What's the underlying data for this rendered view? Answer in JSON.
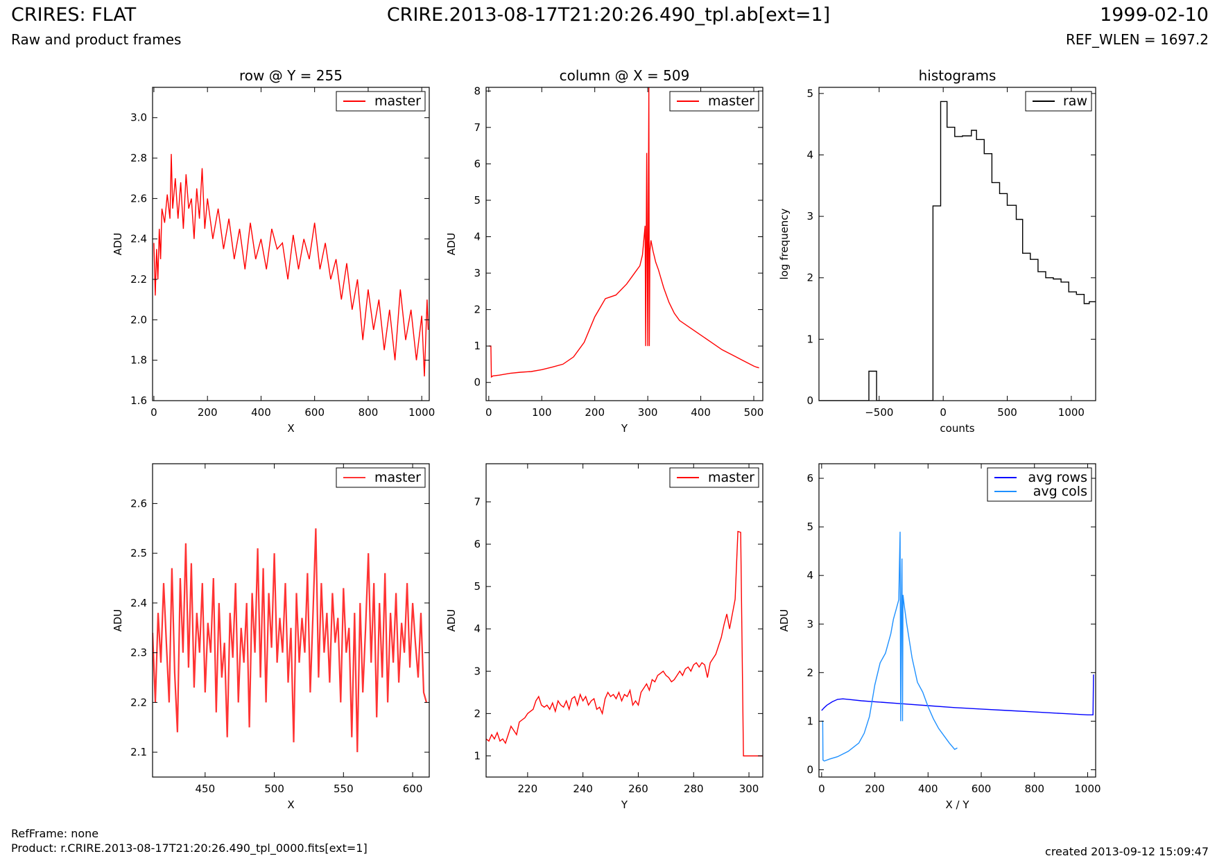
{
  "header": {
    "title_left": "CRIRES: FLAT",
    "subtitle_left": "Raw and product frames",
    "title_center": "CRIRE.2013-08-17T21:20:26.490_tpl.ab[ext=1]",
    "title_right": "1999-02-10",
    "subtitle_right": "REF_WLEN = 1697.2"
  },
  "footer": {
    "ref_frame": "RefFrame: none",
    "product": "Product: r.CRIRE.2013-08-17T21:20:26.490_tpl_0000.fits[ext=1]",
    "created": "created 2013-09-12 15:09:47"
  },
  "colors": {
    "master": "#ff0000",
    "raw": "#000000",
    "avg_rows": "#0000ff",
    "avg_cols": "#1e90ff"
  },
  "chart_data": [
    {
      "id": "row",
      "type": "line",
      "title": "row @ Y = 255",
      "xlabel": "X",
      "ylabel": "ADU",
      "xlim": [
        -5,
        1028
      ],
      "ylim": [
        1.6,
        3.15
      ],
      "xticks": [
        0,
        200,
        400,
        600,
        800,
        1000
      ],
      "yticks": [
        1.6,
        1.8,
        2.0,
        2.2,
        2.4,
        2.6,
        2.8,
        3.0
      ],
      "ytick_labels": [
        "1.6",
        "1.8",
        "2.0",
        "2.2",
        "2.4",
        "2.6",
        "2.8",
        "3.0"
      ],
      "legend": "top-right",
      "series": [
        {
          "name": "master",
          "color": "#ff0000",
          "x": [
            0,
            5,
            10,
            15,
            20,
            25,
            30,
            40,
            50,
            60,
            65,
            70,
            80,
            90,
            100,
            110,
            120,
            130,
            140,
            150,
            160,
            170,
            180,
            190,
            200,
            220,
            240,
            260,
            280,
            300,
            320,
            340,
            360,
            380,
            400,
            420,
            440,
            460,
            480,
            500,
            520,
            540,
            560,
            580,
            600,
            620,
            640,
            660,
            680,
            700,
            720,
            740,
            760,
            780,
            800,
            820,
            840,
            860,
            880,
            900,
            920,
            940,
            960,
            980,
            1000,
            1010,
            1020,
            1024
          ],
          "y": [
            2.38,
            2.12,
            2.35,
            2.2,
            2.45,
            2.3,
            2.55,
            2.48,
            2.62,
            2.5,
            2.82,
            2.55,
            2.7,
            2.5,
            2.68,
            2.45,
            2.72,
            2.55,
            2.6,
            2.4,
            2.65,
            2.5,
            2.75,
            2.45,
            2.6,
            2.4,
            2.55,
            2.35,
            2.5,
            2.3,
            2.45,
            2.25,
            2.48,
            2.3,
            2.4,
            2.25,
            2.45,
            2.35,
            2.38,
            2.2,
            2.42,
            2.25,
            2.4,
            2.3,
            2.48,
            2.25,
            2.38,
            2.2,
            2.3,
            2.1,
            2.28,
            2.05,
            2.2,
            1.9,
            2.15,
            1.95,
            2.1,
            1.85,
            2.05,
            1.8,
            2.15,
            1.9,
            2.05,
            1.8,
            2.02,
            1.72,
            2.1,
            1.95
          ]
        }
      ]
    },
    {
      "id": "column",
      "type": "line",
      "title": "column @ X = 509",
      "xlabel": "Y",
      "ylabel": "ADU",
      "xlim": [
        -5,
        517
      ],
      "ylim": [
        -0.5,
        8.1
      ],
      "xticks": [
        0,
        100,
        200,
        300,
        400,
        500
      ],
      "yticks": [
        0,
        1,
        2,
        3,
        4,
        5,
        6,
        7,
        8
      ],
      "legend": "top-right",
      "series": [
        {
          "name": "master",
          "color": "#ff0000",
          "x": [
            0,
            4,
            5,
            8,
            20,
            40,
            60,
            80,
            100,
            120,
            140,
            160,
            180,
            200,
            220,
            240,
            260,
            270,
            280,
            285,
            290,
            295,
            296,
            298,
            300,
            302,
            303,
            304,
            306,
            310,
            315,
            320,
            330,
            340,
            350,
            360,
            380,
            400,
            420,
            440,
            460,
            480,
            500,
            505,
            510
          ],
          "y": [
            1.0,
            1.0,
            0.15,
            0.18,
            0.2,
            0.25,
            0.28,
            0.3,
            0.35,
            0.42,
            0.5,
            0.7,
            1.1,
            1.8,
            2.3,
            2.4,
            2.7,
            2.9,
            3.1,
            3.2,
            3.5,
            4.3,
            1.0,
            6.3,
            1.0,
            8.1,
            1.0,
            3.6,
            3.9,
            3.6,
            3.3,
            3.1,
            2.6,
            2.2,
            1.9,
            1.7,
            1.5,
            1.3,
            1.1,
            0.9,
            0.75,
            0.6,
            0.45,
            0.42,
            0.4
          ]
        }
      ]
    },
    {
      "id": "histograms",
      "type": "line",
      "title": "histograms",
      "xlabel": "counts",
      "ylabel": "log frequency",
      "xlim": [
        -970,
        1190
      ],
      "ylim": [
        0,
        5.1
      ],
      "xticks": [
        -500,
        0,
        500,
        1000
      ],
      "xtick_labels": [
        "−500",
        "0",
        "500",
        "1000"
      ],
      "yticks": [
        0,
        1,
        2,
        3,
        4,
        5
      ],
      "legend": "top-right",
      "series": [
        {
          "name": "raw",
          "color": "#000000",
          "x": [
            -970,
            -580,
            -580,
            -520,
            -520,
            -80,
            -80,
            -20,
            -20,
            30,
            30,
            90,
            90,
            150,
            150,
            220,
            220,
            260,
            260,
            320,
            320,
            380,
            380,
            440,
            440,
            500,
            500,
            570,
            570,
            620,
            620,
            680,
            680,
            740,
            740,
            800,
            800,
            860,
            860,
            920,
            920,
            980,
            980,
            1040,
            1040,
            1100,
            1100,
            1140,
            1140,
            1190
          ],
          "y": [
            0,
            0,
            0.48,
            0.48,
            0,
            0,
            3.17,
            3.17,
            4.87,
            4.87,
            4.45,
            4.45,
            4.3,
            4.3,
            4.31,
            4.31,
            4.4,
            4.4,
            4.25,
            4.25,
            4.02,
            4.02,
            3.55,
            3.55,
            3.37,
            3.37,
            3.18,
            3.18,
            2.95,
            2.95,
            2.4,
            2.4,
            2.3,
            2.3,
            2.1,
            2.1,
            2.0,
            2.0,
            1.98,
            1.98,
            1.93,
            1.93,
            1.77,
            1.77,
            1.73,
            1.73,
            1.58,
            1.58,
            1.61,
            1.61
          ]
        }
      ]
    },
    {
      "id": "row_zoom",
      "type": "line",
      "title": "",
      "xlabel": "X",
      "ylabel": "ADU",
      "xlim": [
        412,
        612
      ],
      "ylim": [
        2.05,
        2.68
      ],
      "xticks": [
        450,
        500,
        550,
        600
      ],
      "yticks": [
        2.1,
        2.2,
        2.3,
        2.4,
        2.5,
        2.6
      ],
      "legend": "top-right",
      "series": [
        {
          "name": "master",
          "color": "#ff3333",
          "x": [
            412,
            414,
            416,
            418,
            420,
            422,
            424,
            426,
            428,
            430,
            432,
            434,
            436,
            438,
            440,
            442,
            444,
            446,
            448,
            450,
            452,
            454,
            456,
            458,
            460,
            462,
            464,
            466,
            468,
            470,
            472,
            474,
            476,
            478,
            480,
            482,
            484,
            486,
            488,
            490,
            492,
            494,
            496,
            498,
            500,
            502,
            504,
            506,
            508,
            510,
            512,
            514,
            516,
            518,
            520,
            522,
            524,
            526,
            528,
            530,
            532,
            534,
            536,
            538,
            540,
            542,
            544,
            546,
            548,
            550,
            552,
            554,
            556,
            558,
            560,
            562,
            564,
            566,
            568,
            570,
            572,
            574,
            576,
            578,
            580,
            582,
            584,
            586,
            588,
            590,
            592,
            594,
            596,
            598,
            600,
            602,
            604,
            606,
            608,
            610
          ],
          "y": [
            2.34,
            2.2,
            2.38,
            2.28,
            2.44,
            2.32,
            2.2,
            2.47,
            2.26,
            2.14,
            2.45,
            2.3,
            2.52,
            2.27,
            2.48,
            2.23,
            2.38,
            2.3,
            2.44,
            2.22,
            2.36,
            2.3,
            2.45,
            2.18,
            2.4,
            2.25,
            2.32,
            2.13,
            2.38,
            2.29,
            2.44,
            2.2,
            2.35,
            2.28,
            2.4,
            2.15,
            2.42,
            2.3,
            2.51,
            2.25,
            2.47,
            2.2,
            2.42,
            2.31,
            2.5,
            2.28,
            2.37,
            2.3,
            2.44,
            2.24,
            2.35,
            2.12,
            2.42,
            2.28,
            2.37,
            2.3,
            2.46,
            2.22,
            2.38,
            2.55,
            2.25,
            2.44,
            2.3,
            2.38,
            2.24,
            2.42,
            2.32,
            2.37,
            2.2,
            2.43,
            2.3,
            2.35,
            2.13,
            2.38,
            2.1,
            2.4,
            2.22,
            2.35,
            2.5,
            2.28,
            2.44,
            2.17,
            2.4,
            2.25,
            2.46,
            2.2,
            2.38,
            2.28,
            2.42,
            2.24,
            2.36,
            2.3,
            2.44,
            2.27,
            2.4,
            2.32,
            2.25,
            2.38,
            2.22,
            2.2
          ]
        }
      ]
    },
    {
      "id": "column_zoom",
      "type": "line",
      "title": "",
      "xlabel": "Y",
      "ylabel": "ADU",
      "xlim": [
        205,
        305
      ],
      "ylim": [
        0.5,
        7.9
      ],
      "xticks": [
        220,
        240,
        260,
        280,
        300
      ],
      "yticks": [
        1,
        2,
        3,
        4,
        5,
        6,
        7
      ],
      "legend": "top-right",
      "series": [
        {
          "name": "master",
          "color": "#ff0000",
          "x": [
            205,
            206,
            207,
            208,
            209,
            210,
            211,
            212,
            213,
            214,
            215,
            216,
            217,
            218,
            219,
            220,
            221,
            222,
            223,
            224,
            225,
            226,
            227,
            228,
            229,
            230,
            231,
            232,
            233,
            234,
            235,
            236,
            237,
            238,
            239,
            240,
            241,
            242,
            243,
            244,
            245,
            246,
            247,
            248,
            249,
            250,
            251,
            252,
            253,
            254,
            255,
            256,
            257,
            258,
            259,
            260,
            261,
            262,
            263,
            264,
            265,
            266,
            267,
            268,
            269,
            270,
            271,
            272,
            273,
            274,
            275,
            276,
            277,
            278,
            279,
            280,
            281,
            282,
            283,
            284,
            285,
            286,
            287,
            288,
            289,
            290,
            291,
            292,
            293,
            294,
            295,
            296,
            297,
            298,
            299,
            300,
            301,
            302,
            303,
            304,
            305
          ],
          "y": [
            1.4,
            1.35,
            1.5,
            1.4,
            1.55,
            1.35,
            1.4,
            1.3,
            1.5,
            1.7,
            1.6,
            1.5,
            1.8,
            1.85,
            1.9,
            2.0,
            2.05,
            2.1,
            2.3,
            2.4,
            2.2,
            2.15,
            2.2,
            2.1,
            2.25,
            2.05,
            2.3,
            2.2,
            2.15,
            2.3,
            2.1,
            2.35,
            2.4,
            2.2,
            2.45,
            2.3,
            2.4,
            2.2,
            2.3,
            2.35,
            2.1,
            2.15,
            2.0,
            2.35,
            2.5,
            2.4,
            2.45,
            2.35,
            2.5,
            2.3,
            2.45,
            2.4,
            2.55,
            2.2,
            2.3,
            2.2,
            2.5,
            2.6,
            2.7,
            2.55,
            2.8,
            2.75,
            2.9,
            2.95,
            3.0,
            2.9,
            2.85,
            2.75,
            2.8,
            2.9,
            3.0,
            2.9,
            3.05,
            3.1,
            3.0,
            3.15,
            3.2,
            3.1,
            3.2,
            3.15,
            2.85,
            3.2,
            3.3,
            3.4,
            3.6,
            3.8,
            4.1,
            4.35,
            4.0,
            4.35,
            4.7,
            6.3,
            6.28,
            1.0,
            1.0,
            1.0,
            1.0,
            1.0,
            1.0,
            1.0,
            1.0
          ]
        }
      ]
    },
    {
      "id": "averages",
      "type": "line",
      "title": "",
      "xlabel": "X / Y",
      "ylabel": "ADU",
      "xlim": [
        -10,
        1030
      ],
      "ylim": [
        -0.15,
        6.3
      ],
      "xticks": [
        0,
        200,
        400,
        600,
        800,
        1000
      ],
      "yticks": [
        0,
        1,
        2,
        3,
        4,
        5,
        6
      ],
      "legend": "top-right",
      "series": [
        {
          "name": "avg rows",
          "color": "#0000ff",
          "x": [
            0,
            10,
            20,
            40,
            60,
            80,
            100,
            150,
            200,
            300,
            400,
            500,
            600,
            700,
            800,
            900,
            1000,
            1020,
            1022,
            1024
          ],
          "y": [
            1.22,
            1.28,
            1.33,
            1.4,
            1.45,
            1.46,
            1.45,
            1.42,
            1.4,
            1.36,
            1.32,
            1.28,
            1.25,
            1.22,
            1.19,
            1.16,
            1.13,
            1.13,
            1.95,
            1.95
          ]
        },
        {
          "name": "avg cols",
          "color": "#1e90ff",
          "x": [
            0,
            4,
            5,
            10,
            30,
            60,
            100,
            140,
            160,
            180,
            200,
            220,
            240,
            260,
            270,
            280,
            290,
            295,
            297,
            300,
            302,
            304,
            306,
            310,
            320,
            340,
            360,
            380,
            400,
            420,
            440,
            460,
            480,
            500,
            510
          ],
          "y": [
            1.0,
            1.0,
            0.2,
            0.18,
            0.22,
            0.27,
            0.38,
            0.55,
            0.75,
            1.1,
            1.75,
            2.2,
            2.4,
            2.8,
            3.1,
            3.3,
            3.5,
            4.9,
            1.0,
            3.5,
            4.35,
            1.0,
            3.6,
            3.4,
            3.0,
            2.3,
            1.8,
            1.6,
            1.3,
            1.05,
            0.85,
            0.7,
            0.55,
            0.42,
            0.45
          ]
        }
      ]
    }
  ]
}
